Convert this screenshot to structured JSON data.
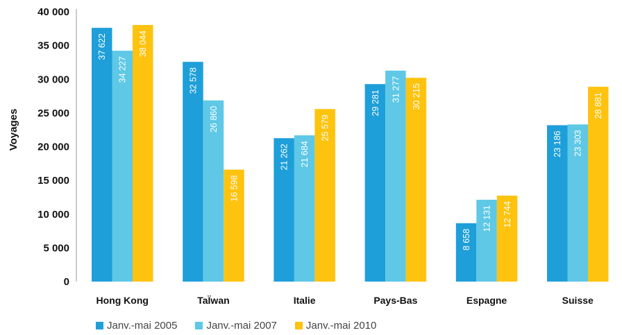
{
  "chart_data": {
    "type": "bar",
    "ylabel": "Voyages",
    "xlabel": "",
    "ylim": [
      0,
      40000
    ],
    "yticks": [
      0,
      5000,
      10000,
      15000,
      20000,
      25000,
      30000,
      35000,
      40000
    ],
    "ytick_labels": [
      "0",
      "5 000",
      "10 000",
      "15 000",
      "20 000",
      "25 000",
      "30 000",
      "35 000",
      "40 000"
    ],
    "categories": [
      "Hong Kong",
      "TaÏwan",
      "Italie",
      "Pays-Bas",
      "Espagne",
      "Suisse"
    ],
    "series": [
      {
        "name": "Janv.-mai 2005",
        "color": "#1e9fd9",
        "values": [
          37622,
          32578,
          21262,
          29281,
          8658,
          23186
        ],
        "labels": [
          "37 622",
          "32 578",
          "21 262",
          "29 281",
          "8 658",
          "23 186"
        ]
      },
      {
        "name": "Janv.-mai 2007",
        "color": "#5ec8e6",
        "values": [
          34227,
          26860,
          21684,
          31277,
          12131,
          23303
        ],
        "labels": [
          "34 227",
          "26 860",
          "21 684",
          "31 277",
          "12 131",
          "23 303"
        ]
      },
      {
        "name": "Janv.-mai 2010",
        "color": "#fec30f",
        "values": [
          38044,
          16598,
          25579,
          30215,
          12744,
          28881
        ],
        "labels": [
          "38 044",
          "16 598",
          "25 579",
          "30 215",
          "12 744",
          "28 881"
        ]
      }
    ],
    "legend_position": "bottom-left",
    "grid": false
  }
}
